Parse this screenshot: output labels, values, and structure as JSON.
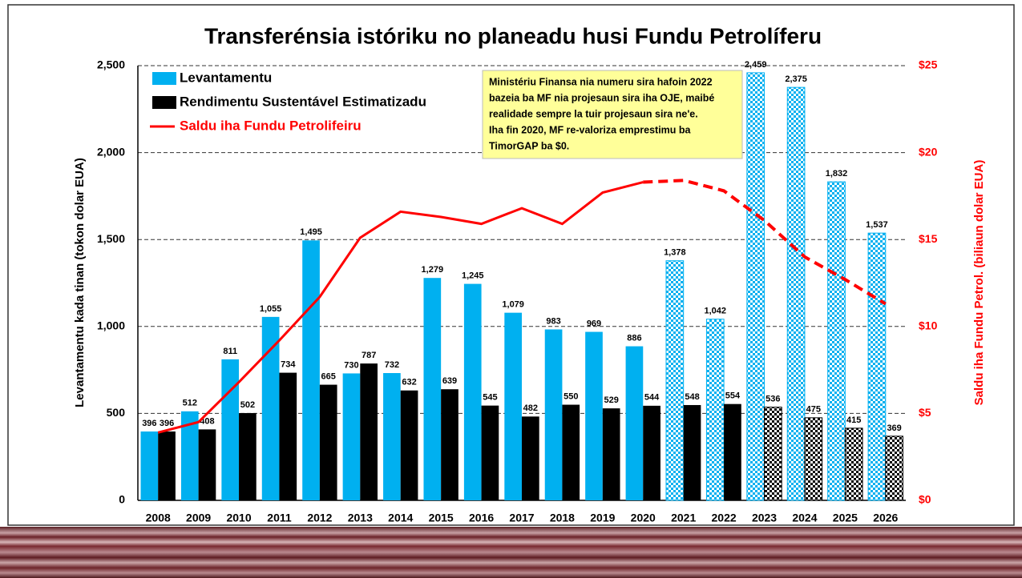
{
  "chart_data": {
    "type": "bar_line",
    "title": "Transferénsia istóriku no planeadu husi Fundu Petrolíferu",
    "y_label": "Levantamentu kada tinan (tokon dolar EUA)",
    "y2_label": "Saldu iha Fundu Petrol. (biliaun dolar EUA)",
    "annotation": [
      "Ministériu Finansa nia numeru sira hafoin 2022",
      "bazeia ba MF nia projesaun sira iha OJE, maibé",
      "realidade sempre la tuir projesaun sira ne'e.",
      "Iha fin 2020,  MF re-valoriza emprestimu ba",
      "TimorGAP ba $0."
    ],
    "categories": [
      "2008",
      "2009",
      "2010",
      "2011",
      "2012",
      "2013",
      "2014",
      "2015",
      "2016",
      "2017",
      "2018",
      "2019",
      "2020",
      "2021",
      "2022",
      "2023",
      "2024",
      "2025",
      "2026"
    ],
    "series": [
      {
        "name": "Levantamentu",
        "type": "bar",
        "color": "#00b0f0",
        "checkered_from": "2021",
        "values": [
          396,
          512,
          811,
          1055,
          1495,
          730,
          732,
          1279,
          1245,
          1079,
          983,
          969,
          886,
          1378,
          1042,
          2459,
          2375,
          1832,
          1537
        ],
        "value_labels": [
          "396",
          "512",
          "811",
          "1,055",
          "1,495",
          "730",
          "732",
          "1,279",
          "1,245",
          "1,079",
          "983",
          "969",
          "886",
          "1,378",
          "1,042",
          "2,459",
          "2,375",
          "1,832",
          "1,537"
        ]
      },
      {
        "name": "Rendimentu Sustentável Estimatizadu",
        "type": "bar",
        "color": "#000000",
        "checkered_from": "2023",
        "values": [
          396,
          408,
          502,
          734,
          665,
          787,
          632,
          639,
          545,
          482,
          550,
          529,
          544,
          548,
          554,
          536,
          475,
          415,
          369
        ],
        "value_labels": [
          "396",
          "408",
          "502",
          "734",
          "665",
          "787",
          "632",
          "639",
          "545",
          "482",
          "550",
          "529",
          "544",
          "548",
          "554",
          "536",
          "475",
          "415",
          "369"
        ]
      },
      {
        "name": "Saldu iha Fundu Petrolifeiru",
        "type": "line",
        "axis": "y2",
        "color": "#ff0000",
        "dashed_from": "2020",
        "values": [
          3.9,
          4.5,
          6.8,
          9.2,
          11.7,
          15.1,
          16.6,
          16.3,
          15.9,
          16.8,
          15.9,
          17.7,
          18.3,
          18.4,
          17.8,
          16.1,
          14.0,
          12.7,
          11.3
        ]
      }
    ],
    "ylim": [
      0,
      2500
    ],
    "yticks": [
      0,
      500,
      {
        "value": 1000,
        "label": "1,000"
      },
      {
        "value": 1500,
        "label": "1,500"
      },
      {
        "value": 2000,
        "label": "2,000"
      },
      {
        "value": 2500,
        "label": "2,500"
      }
    ],
    "y2lim": [
      0,
      25
    ],
    "y2ticks": [
      {
        "value": 0,
        "label": "$0"
      },
      {
        "value": 5,
        "label": "$5"
      },
      {
        "value": 10,
        "label": "$10"
      },
      {
        "value": 15,
        "label": "$15"
      },
      {
        "value": 20,
        "label": "$20"
      },
      {
        "value": 25,
        "label": "$25"
      }
    ],
    "y2_color": "#ff0000",
    "grid": true,
    "legend": "top-left"
  }
}
